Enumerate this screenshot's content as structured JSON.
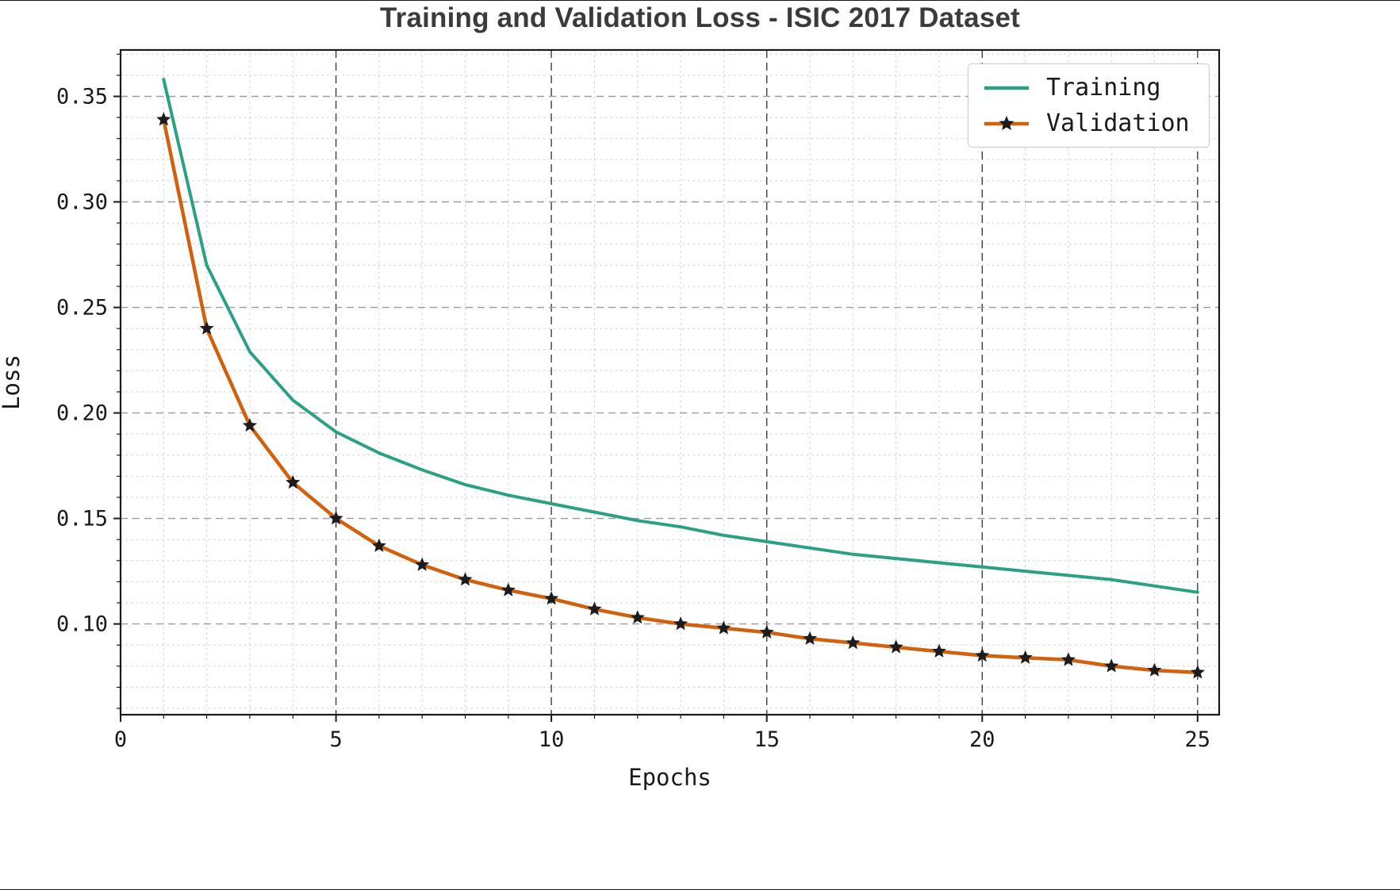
{
  "chart_data": {
    "type": "line",
    "title": "Training and Validation Loss - ISIC 2017 Dataset",
    "xlabel": "Epochs",
    "ylabel": "Loss",
    "x": [
      1,
      2,
      3,
      4,
      5,
      6,
      7,
      8,
      9,
      10,
      11,
      12,
      13,
      14,
      15,
      16,
      17,
      18,
      19,
      20,
      21,
      22,
      23,
      24,
      25
    ],
    "series": [
      {
        "name": "Training",
        "color": "#2aa184",
        "marker": "none",
        "line_width": 4,
        "values": [
          0.358,
          0.27,
          0.229,
          0.206,
          0.191,
          0.181,
          0.173,
          0.166,
          0.161,
          0.157,
          0.153,
          0.149,
          0.146,
          0.142,
          0.139,
          0.136,
          0.133,
          0.131,
          0.129,
          0.127,
          0.125,
          0.123,
          0.121,
          0.118,
          0.115
        ]
      },
      {
        "name": "Validation",
        "color": "#d2610e",
        "marker": "star",
        "marker_color": "#1c1c1c",
        "line_width": 4.5,
        "values": [
          0.339,
          0.24,
          0.194,
          0.167,
          0.15,
          0.137,
          0.128,
          0.121,
          0.116,
          0.112,
          0.107,
          0.103,
          0.1,
          0.098,
          0.096,
          0.093,
          0.091,
          0.089,
          0.087,
          0.085,
          0.084,
          0.083,
          0.08,
          0.078,
          0.077
        ]
      }
    ],
    "xlim": [
      0,
      25.5
    ],
    "ylim": [
      0.057,
      0.372
    ],
    "xticks": [
      0,
      5,
      10,
      15,
      20,
      25
    ],
    "xtick_labels": [
      "0",
      "5",
      "10",
      "15",
      "20",
      "25"
    ],
    "yticks": [
      0.1,
      0.15,
      0.2,
      0.25,
      0.3,
      0.35
    ],
    "ytick_labels": [
      "0.10",
      "0.15",
      "0.20",
      "0.25",
      "0.30",
      "0.35"
    ],
    "x_minor_step": 1,
    "y_minor_step": 0.01,
    "grid": true,
    "legend_position": "upper right"
  }
}
